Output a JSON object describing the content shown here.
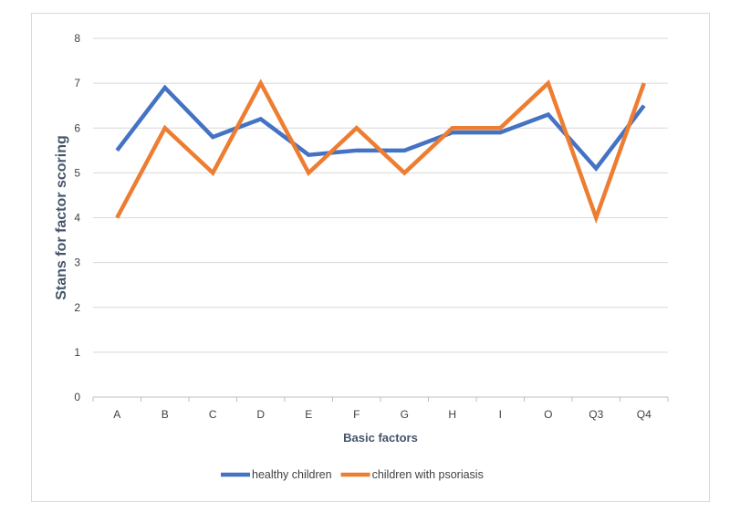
{
  "chart_data": {
    "type": "line",
    "title": "",
    "xlabel": "Basic factors",
    "ylabel": "Stans for factor scoring",
    "categories": [
      "A",
      "B",
      "C",
      "D",
      "E",
      "F",
      "G",
      "H",
      "I",
      "O",
      "Q3",
      "Q4"
    ],
    "ylim": [
      0,
      8
    ],
    "yticks": [
      0,
      1,
      2,
      3,
      4,
      5,
      6,
      7,
      8
    ],
    "grid": true,
    "legend_position": "bottom",
    "series": [
      {
        "name": "healthy children",
        "color": "#4472c4",
        "values": [
          5.5,
          6.9,
          5.8,
          6.2,
          5.4,
          5.5,
          5.5,
          5.9,
          5.9,
          6.3,
          5.1,
          6.5
        ]
      },
      {
        "name": "children with psoriasis",
        "color": "#ed7d31",
        "values": [
          4,
          6,
          5,
          7,
          5,
          6,
          5,
          6,
          6,
          7,
          4,
          7
        ]
      }
    ]
  }
}
